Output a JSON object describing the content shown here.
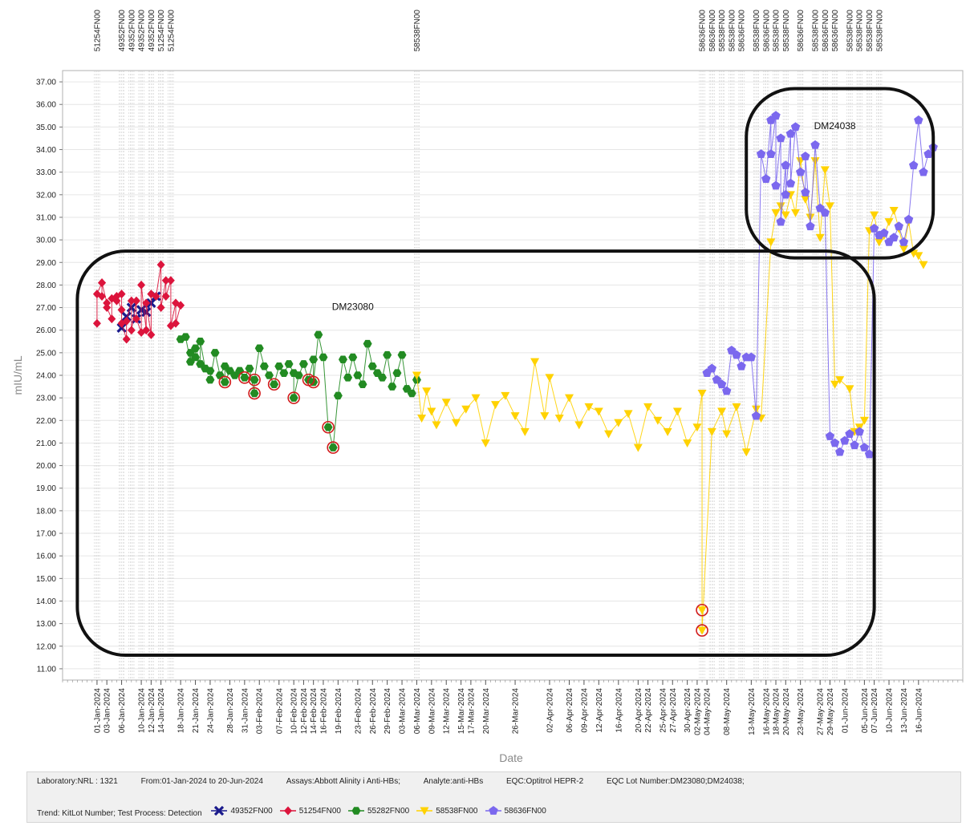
{
  "chart_data": {
    "type": "line",
    "xlabel": "Date",
    "ylabel": "mIU/mL",
    "ylim": [
      10.5,
      37.5
    ],
    "y_ticks": [
      "11.00",
      "12.00",
      "13.00",
      "14.00",
      "15.00",
      "16.00",
      "17.00",
      "18.00",
      "19.00",
      "20.00",
      "21.00",
      "22.00",
      "23.00",
      "24.00",
      "25.00",
      "26.00",
      "27.00",
      "28.00",
      "29.00",
      "30.00",
      "31.00",
      "32.00",
      "33.00",
      "34.00",
      "35.00",
      "36.00",
      "37.00"
    ],
    "x_range": [
      "2023-12-25",
      "2024-06-25"
    ],
    "x_tick_labels": [
      "01-Jan-2024",
      "03-Jan-2024",
      "06-Jan-2024",
      "10-Jan-2024",
      "12-Jan-2024",
      "14-Jan-2024",
      "18-Jan-2024",
      "21-Jan-2024",
      "24-Jan-2024",
      "28-Jan-2024",
      "31-Jan-2024",
      "03-Feb-2024",
      "07-Feb-2024",
      "10-Feb-2024",
      "12-Feb-2024",
      "14-Feb-2024",
      "16-Feb-2024",
      "19-Feb-2024",
      "23-Feb-2024",
      "26-Feb-2024",
      "29-Feb-2024",
      "03-Mar-2024",
      "06-Mar-2024",
      "09-Mar-2024",
      "12-Mar-2024",
      "15-Mar-2024",
      "17-Mar-2024",
      "20-Mar-2024",
      "26-Mar-2024",
      "02-Apr-2024",
      "06-Apr-2024",
      "09-Apr-2024",
      "12-Apr-2024",
      "16-Apr-2024",
      "20-Apr-2024",
      "22-Apr-2024",
      "25-Apr-2024",
      "27-Apr-2024",
      "30-Apr-2024",
      "02-May-2024",
      "04-May-2024",
      "08-May-2024",
      "13-May-2024",
      "16-May-2024",
      "18-May-2024",
      "20-May-2024",
      "23-May-2024",
      "27-May-2024",
      "29-May-2024",
      "01-Jun-2024",
      "05-Jun-2024",
      "07-Jun-2024",
      "10-Jun-2024",
      "13-Jun-2024",
      "16-Jun-2024"
    ],
    "lot_markers": [
      {
        "label": "51254FN00",
        "date": "2024-01-01"
      },
      {
        "label": "49352FN00",
        "date": "2024-01-06"
      },
      {
        "label": "49352FN00",
        "date": "2024-01-08"
      },
      {
        "label": "49352FN00",
        "date": "2024-01-10"
      },
      {
        "label": "49352FN00",
        "date": "2024-01-12"
      },
      {
        "label": "51254FN00",
        "date": "2024-01-14"
      },
      {
        "label": "51254FN00",
        "date": "2024-01-16"
      },
      {
        "label": "58538FN00",
        "date": "2024-03-06"
      },
      {
        "label": "58636FN00",
        "date": "2024-05-03"
      },
      {
        "label": "58636FN00",
        "date": "2024-05-05"
      },
      {
        "label": "58538FN00",
        "date": "2024-05-07"
      },
      {
        "label": "58538FN00",
        "date": "2024-05-09"
      },
      {
        "label": "58636FN00",
        "date": "2024-05-11"
      },
      {
        "label": "58538FN00",
        "date": "2024-05-14"
      },
      {
        "label": "58636FN00",
        "date": "2024-05-16"
      },
      {
        "label": "58538FN00",
        "date": "2024-05-18"
      },
      {
        "label": "58538FN00",
        "date": "2024-05-20"
      },
      {
        "label": "58636FN00",
        "date": "2024-05-23"
      },
      {
        "label": "58538FN00",
        "date": "2024-05-26"
      },
      {
        "label": "58636FN00",
        "date": "2024-05-28"
      },
      {
        "label": "58636FN00",
        "date": "2024-05-30"
      },
      {
        "label": "58538FN00",
        "date": "2024-06-02"
      },
      {
        "label": "58538FN00",
        "date": "2024-06-04"
      },
      {
        "label": "58538FN00",
        "date": "2024-06-06"
      },
      {
        "label": "58538FN00",
        "date": "2024-06-08"
      }
    ],
    "annotations": [
      {
        "text": "DM23080",
        "date": "2024-02-22",
        "value": 26.9
      },
      {
        "text": "DM24038",
        "date": "2024-05-30",
        "value": 34.9
      }
    ],
    "region_boxes": [
      {
        "name": "DM23080",
        "x": [
          "2023-12-28",
          "2024-06-07"
        ],
        "y": [
          11.6,
          29.5
        ]
      },
      {
        "name": "DM24038",
        "x": [
          "2024-05-12",
          "2024-06-19"
        ],
        "y": [
          29.2,
          36.7
        ]
      }
    ],
    "series": [
      {
        "name": "49352FN00",
        "color": "#1a1a8c",
        "marker": "cross",
        "x": [
          "2024-01-06",
          "2024-01-07",
          "2024-01-08",
          "2024-01-09",
          "2024-01-10",
          "2024-01-11",
          "2024-01-12",
          "2024-01-13"
        ],
        "y": [
          26.1,
          26.6,
          27.0,
          26.5,
          26.9,
          26.8,
          27.2,
          27.5
        ]
      },
      {
        "name": "51254FN00",
        "color": "#dc143c",
        "marker": "diamond",
        "x": [
          "2024-01-01",
          "2024-01-01",
          "2024-01-02",
          "2024-01-02",
          "2024-01-02",
          "2024-01-03",
          "2024-01-03",
          "2024-01-04",
          "2024-01-04",
          "2024-01-05",
          "2024-01-05",
          "2024-01-06",
          "2024-01-06",
          "2024-01-06",
          "2024-01-07",
          "2024-01-07",
          "2024-01-08",
          "2024-01-08",
          "2024-01-09",
          "2024-01-09",
          "2024-01-10",
          "2024-01-10",
          "2024-01-11",
          "2024-01-11",
          "2024-01-12",
          "2024-01-12",
          "2024-01-13",
          "2024-01-14",
          "2024-01-14",
          "2024-01-15",
          "2024-01-15",
          "2024-01-16",
          "2024-01-16",
          "2024-01-17",
          "2024-01-17",
          "2024-01-18"
        ],
        "y": [
          26.3,
          27.6,
          28.1,
          27.5,
          28.1,
          27.2,
          27.0,
          26.5,
          27.4,
          27.3,
          27.5,
          26.9,
          27.6,
          26.3,
          25.6,
          26.4,
          27.3,
          26.0,
          27.3,
          26.5,
          25.9,
          28.0,
          26.0,
          27.2,
          25.8,
          27.6,
          27.5,
          28.9,
          27.0,
          28.2,
          27.5,
          28.2,
          26.2,
          27.2,
          26.3,
          27.1
        ]
      },
      {
        "name": "55282FN00",
        "color": "#228b22",
        "marker": "hexagon",
        "x": [
          "2024-01-18",
          "2024-01-19",
          "2024-01-20",
          "2024-01-20",
          "2024-01-21",
          "2024-01-21",
          "2024-01-22",
          "2024-01-22",
          "2024-01-23",
          "2024-01-24",
          "2024-01-24",
          "2024-01-25",
          "2024-01-26",
          "2024-01-27",
          "2024-01-27",
          "2024-01-28",
          "2024-01-29",
          "2024-01-30",
          "2024-01-31",
          "2024-02-01",
          "2024-02-02",
          "2024-02-02",
          "2024-02-03",
          "2024-02-04",
          "2024-02-05",
          "2024-02-06",
          "2024-02-07",
          "2024-02-08",
          "2024-02-09",
          "2024-02-10",
          "2024-02-10",
          "2024-02-11",
          "2024-02-12",
          "2024-02-13",
          "2024-02-14",
          "2024-02-14",
          "2024-02-15",
          "2024-02-16",
          "2024-02-17",
          "2024-02-18",
          "2024-02-19",
          "2024-02-20",
          "2024-02-21",
          "2024-02-22",
          "2024-02-23",
          "2024-02-24",
          "2024-02-25",
          "2024-02-26",
          "2024-02-27",
          "2024-02-28",
          "2024-02-29",
          "2024-03-01",
          "2024-03-02",
          "2024-03-03",
          "2024-03-04",
          "2024-03-05",
          "2024-03-06"
        ],
        "y": [
          25.6,
          25.7,
          24.6,
          25.0,
          24.8,
          25.2,
          24.5,
          25.5,
          24.3,
          24.2,
          23.8,
          25.0,
          24.0,
          24.4,
          23.7,
          24.2,
          24.0,
          24.2,
          23.9,
          24.3,
          23.2,
          23.8,
          25.2,
          24.4,
          24.0,
          23.6,
          24.4,
          24.1,
          24.5,
          24.1,
          23.0,
          24.0,
          24.5,
          23.8,
          24.7,
          23.7,
          25.8,
          24.8,
          21.7,
          20.8,
          23.1,
          24.7,
          23.9,
          24.8,
          24.0,
          23.6,
          25.4,
          24.4,
          24.1,
          23.9,
          24.9,
          23.5,
          24.1,
          24.9,
          23.4,
          23.2,
          23.8
        ]
      },
      {
        "name": "58538FN00",
        "color": "#ffd200",
        "marker": "triangle-down",
        "x": [
          "2024-03-06",
          "2024-03-07",
          "2024-03-08",
          "2024-03-09",
          "2024-03-10",
          "2024-03-12",
          "2024-03-14",
          "2024-03-16",
          "2024-03-18",
          "2024-03-20",
          "2024-03-22",
          "2024-03-24",
          "2024-03-26",
          "2024-03-28",
          "2024-03-30",
          "2024-04-01",
          "2024-04-02",
          "2024-04-04",
          "2024-04-06",
          "2024-04-08",
          "2024-04-10",
          "2024-04-12",
          "2024-04-14",
          "2024-04-16",
          "2024-04-18",
          "2024-04-20",
          "2024-04-22",
          "2024-04-24",
          "2024-04-26",
          "2024-04-28",
          "2024-04-30",
          "2024-05-02",
          "2024-05-03",
          "2024-05-03",
          "2024-05-03",
          "2024-05-05",
          "2024-05-07",
          "2024-05-08",
          "2024-05-10",
          "2024-05-12",
          "2024-05-14",
          "2024-05-15",
          "2024-05-17",
          "2024-05-18",
          "2024-05-19",
          "2024-05-20",
          "2024-05-21",
          "2024-05-22",
          "2024-05-23",
          "2024-05-24",
          "2024-05-25",
          "2024-05-26",
          "2024-05-27",
          "2024-05-28",
          "2024-05-29",
          "2024-05-30",
          "2024-05-31",
          "2024-06-02",
          "2024-06-03",
          "2024-06-04",
          "2024-06-05",
          "2024-06-06",
          "2024-06-07",
          "2024-06-08",
          "2024-06-09",
          "2024-06-10",
          "2024-06-11",
          "2024-06-12",
          "2024-06-13",
          "2024-06-14",
          "2024-06-15",
          "2024-06-16",
          "2024-06-17"
        ],
        "y": [
          24.0,
          22.1,
          23.3,
          22.4,
          21.8,
          22.8,
          21.9,
          22.5,
          23.0,
          21.0,
          22.7,
          23.1,
          22.2,
          21.5,
          24.6,
          22.2,
          23.9,
          22.1,
          23.0,
          21.8,
          22.6,
          22.4,
          21.4,
          21.9,
          22.3,
          20.8,
          22.6,
          22.0,
          21.5,
          22.4,
          21.0,
          21.7,
          23.2,
          13.6,
          12.7,
          21.5,
          22.4,
          21.4,
          22.6,
          20.6,
          22.5,
          22.1,
          29.9,
          31.2,
          31.5,
          31.1,
          32.0,
          31.2,
          33.5,
          31.8,
          31.0,
          33.5,
          30.1,
          33.1,
          31.5,
          23.6,
          23.8,
          23.4,
          21.5,
          21.7,
          22.0,
          30.4,
          31.1,
          29.9,
          30.2,
          30.8,
          31.3,
          30.5,
          29.6,
          30.8,
          29.4,
          29.3,
          28.9
        ]
      },
      {
        "name": "58636FN00",
        "color": "#7b68ee",
        "marker": "pentagon",
        "x": [
          "2024-05-04",
          "2024-05-05",
          "2024-05-06",
          "2024-05-07",
          "2024-05-08",
          "2024-05-09",
          "2024-05-10",
          "2024-05-11",
          "2024-05-12",
          "2024-05-13",
          "2024-05-14",
          "2024-05-15",
          "2024-05-16",
          "2024-05-17",
          "2024-05-17",
          "2024-05-18",
          "2024-05-18",
          "2024-05-19",
          "2024-05-19",
          "2024-05-20",
          "2024-05-20",
          "2024-05-21",
          "2024-05-21",
          "2024-05-22",
          "2024-05-23",
          "2024-05-24",
          "2024-05-24",
          "2024-05-25",
          "2024-05-26",
          "2024-05-27",
          "2024-05-28",
          "2024-05-29",
          "2024-05-30",
          "2024-05-31",
          "2024-06-01",
          "2024-06-02",
          "2024-06-03",
          "2024-06-04",
          "2024-06-05",
          "2024-06-06",
          "2024-06-07",
          "2024-06-08",
          "2024-06-09",
          "2024-06-10",
          "2024-06-11",
          "2024-06-12",
          "2024-06-13",
          "2024-06-14",
          "2024-06-15",
          "2024-06-16",
          "2024-06-17",
          "2024-06-18",
          "2024-06-19"
        ],
        "y": [
          24.1,
          24.3,
          23.8,
          23.6,
          23.3,
          25.1,
          24.9,
          24.4,
          24.8,
          24.8,
          22.2,
          33.8,
          32.7,
          35.3,
          33.8,
          35.5,
          32.4,
          34.5,
          30.8,
          33.3,
          32.0,
          34.7,
          32.5,
          35.0,
          33.0,
          32.1,
          33.7,
          30.6,
          34.2,
          31.4,
          31.2,
          21.3,
          21.0,
          20.6,
          21.1,
          21.4,
          20.9,
          21.5,
          20.8,
          20.5,
          30.5,
          30.2,
          30.3,
          29.9,
          30.1,
          30.6,
          29.9,
          30.9,
          33.3,
          35.3,
          33.0,
          33.8,
          34.1
        ]
      }
    ]
  },
  "footer": {
    "laboratory": "Laboratory:NRL : 1321",
    "date_range": "From:01-Jan-2024 to 20-Jun-2024",
    "assays": "Assays:Abbott Alinity i Anti-HBs;",
    "analyte": "Analyte:anti-HBs",
    "eqc": "EQC:Optitrol HEPR-2",
    "eqc_lot": "EQC Lot Number:DM23080;DM24038;",
    "trend": "Trend: KitLot Number; Test Process: Detection",
    "legend": [
      {
        "label": "49352FN00",
        "color": "#1a1a8c",
        "marker": "cross"
      },
      {
        "label": "51254FN00",
        "color": "#dc143c",
        "marker": "diamond"
      },
      {
        "label": "55282FN00",
        "color": "#228b22",
        "marker": "hexagon"
      },
      {
        "label": "58538FN00",
        "color": "#ffd200",
        "marker": "triangle-down"
      },
      {
        "label": "58636FN00",
        "color": "#7b68ee",
        "marker": "pentagon"
      }
    ]
  }
}
